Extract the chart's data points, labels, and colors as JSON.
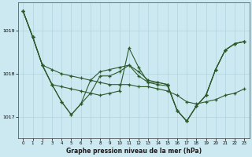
{
  "title": "Graphe pression niveau de la mer (hPa)",
  "background_color": "#cce8f0",
  "grid_color": "#aacfda",
  "line_color": "#2d5a2d",
  "xlim": [
    -0.5,
    23.5
  ],
  "ylim": [
    1016.5,
    1019.65
  ],
  "yticks": [
    1017,
    1018,
    1019
  ],
  "xticks": [
    0,
    1,
    2,
    3,
    4,
    5,
    6,
    7,
    8,
    9,
    10,
    11,
    12,
    13,
    14,
    15,
    16,
    17,
    18,
    19,
    20,
    21,
    22,
    23
  ],
  "series": [
    {
      "x": [
        0,
        1,
        2,
        3,
        4,
        5,
        6,
        7,
        8,
        9,
        10,
        11,
        12,
        13,
        14,
        15,
        16,
        17,
        18,
        19,
        20,
        21,
        22,
        23
      ],
      "y": [
        1019.45,
        1018.85,
        1018.2,
        1018.1,
        1018.0,
        1017.95,
        1017.9,
        1017.85,
        1017.8,
        1017.75,
        1017.75,
        1017.75,
        1017.7,
        1017.7,
        1017.65,
        1017.6,
        1017.5,
        1017.35,
        1017.3,
        1017.35,
        1017.4,
        1017.5,
        1017.55,
        1017.65
      ]
    },
    {
      "x": [
        0,
        1,
        2,
        3,
        4,
        5,
        6,
        7,
        8,
        9,
        10,
        11,
        12,
        13,
        14,
        15,
        16,
        17,
        18,
        19,
        20,
        21,
        22,
        23
      ],
      "y": [
        1019.45,
        1018.85,
        1018.2,
        1017.75,
        1017.7,
        1017.65,
        1017.6,
        1017.55,
        1017.5,
        1017.55,
        1017.6,
        1018.6,
        1018.15,
        1017.8,
        1017.75,
        1017.72,
        1017.15,
        1016.9,
        1017.25,
        1017.5,
        1018.1,
        1018.55,
        1018.7,
        1018.75
      ]
    },
    {
      "x": [
        0,
        1,
        2,
        3,
        4,
        5,
        6,
        7,
        8,
        9,
        10,
        11,
        12,
        13,
        14,
        15,
        16,
        17,
        18,
        19,
        20,
        21,
        22,
        23
      ],
      "y": [
        1019.45,
        1018.85,
        1018.2,
        1017.75,
        1017.35,
        1017.05,
        1017.3,
        1017.55,
        1017.95,
        1017.95,
        1018.05,
        1018.2,
        1018.05,
        1017.85,
        1017.8,
        1017.75,
        1017.15,
        1016.9,
        1017.25,
        1017.5,
        1018.1,
        1018.55,
        1018.7,
        1018.75
      ]
    },
    {
      "x": [
        0,
        1,
        2,
        3,
        4,
        5,
        6,
        7,
        8,
        9,
        10,
        11,
        12,
        13,
        14,
        15,
        16,
        17,
        18,
        19,
        20,
        21,
        22,
        23
      ],
      "y": [
        1019.45,
        1018.85,
        1018.2,
        1017.75,
        1017.35,
        1017.05,
        1017.3,
        1017.85,
        1018.05,
        1018.1,
        1018.15,
        1018.2,
        1017.95,
        1017.8,
        1017.8,
        1017.75,
        1017.15,
        1016.9,
        1017.25,
        1017.5,
        1018.1,
        1018.55,
        1018.7,
        1018.75
      ]
    }
  ]
}
